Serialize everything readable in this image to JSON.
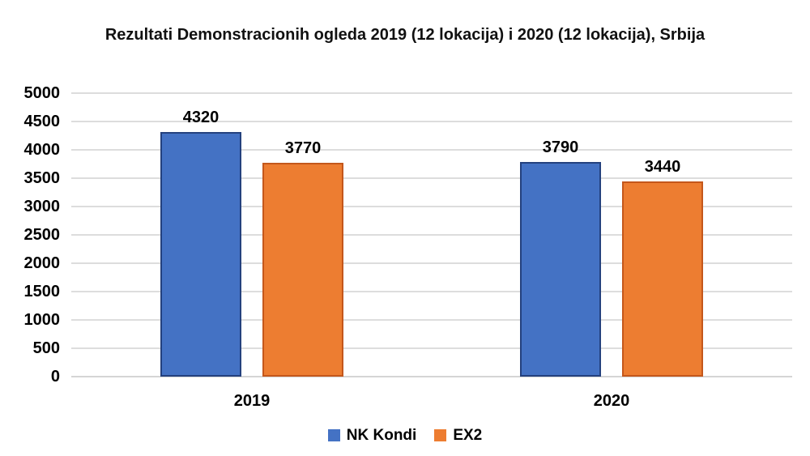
{
  "chart_data": {
    "type": "bar",
    "title": "Rezultati Demonstracionih ogleda 2019 (12 lokacija) i 2020 (12 lokacija), Srbija",
    "categories": [
      "2019",
      "2020"
    ],
    "series": [
      {
        "name": "NK Kondi",
        "color": "#4472C4",
        "border_color": "#24417E",
        "values": [
          4320,
          3790
        ]
      },
      {
        "name": "EX2",
        "color": "#ED7D31",
        "border_color": "#C4571B",
        "values": [
          3770,
          3440
        ]
      }
    ],
    "ylim": [
      0,
      5000
    ],
    "yticks": [
      0,
      500,
      1000,
      1500,
      2000,
      2500,
      3000,
      3500,
      4000,
      4500,
      5000
    ],
    "grid": true,
    "legend_position": "bottom",
    "background_color": "#FFFFFF",
    "gridline_color": "#DDDDDD"
  }
}
